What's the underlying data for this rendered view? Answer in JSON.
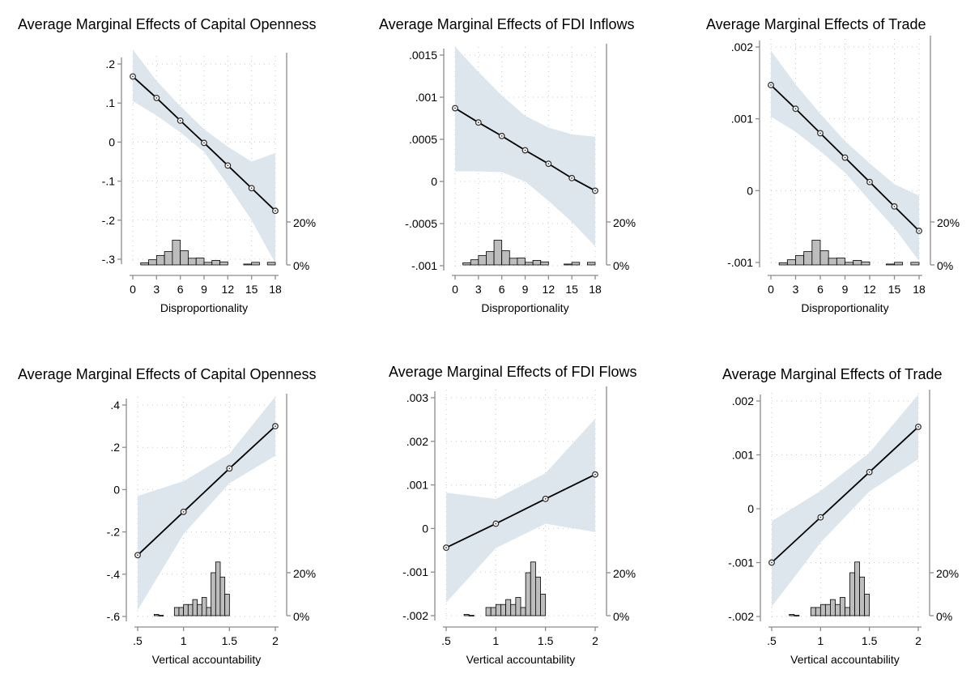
{
  "chart_data": [
    {
      "type": "line",
      "title": "Average Marginal Effects of Capital Openness",
      "xlabel": "Disproportionality",
      "xlim": [
        0,
        18
      ],
      "xticks": [
        0,
        3,
        6,
        9,
        12,
        15,
        18
      ],
      "xtick_labels": [
        "0",
        "3",
        "6",
        "9",
        "12",
        "15",
        "18"
      ],
      "ylim": [
        -0.3,
        0.2
      ],
      "yticks": [
        -0.3,
        -0.2,
        -0.1,
        0,
        0.1,
        0.2
      ],
      "ytick_labels": [
        "-.3",
        "-.2",
        "-.1",
        "0",
        ".1",
        ".2"
      ],
      "x": [
        0,
        3,
        6,
        9,
        12,
        15,
        18
      ],
      "y": [
        0.168,
        0.113,
        0.055,
        -0.002,
        -0.06,
        -0.118,
        -0.176
      ],
      "ci_lower": [
        0.105,
        0.068,
        0.025,
        -0.025,
        -0.11,
        -0.2,
        -0.31
      ],
      "ci_upper": [
        0.237,
        0.157,
        0.092,
        0.033,
        -0.012,
        -0.05,
        -0.028
      ],
      "histogram": {
        "bin_width": 1,
        "bin_starts": [
          1,
          2,
          3,
          4,
          5,
          6,
          7,
          8,
          9,
          10,
          11,
          14,
          15,
          17
        ],
        "shares": [
          0.01,
          0.024,
          0.044,
          0.062,
          0.115,
          0.066,
          0.031,
          0.032,
          0.012,
          0.021,
          0.014,
          0.004,
          0.012,
          0.012
        ]
      },
      "secondary_axis_labels": [
        "20%",
        "0%"
      ]
    },
    {
      "type": "line",
      "title": "Average Marginal Effects of FDI Inflows",
      "xlabel": "Disproportionality",
      "xlim": [
        0,
        18
      ],
      "xticks": [
        0,
        3,
        6,
        9,
        12,
        15,
        18
      ],
      "xtick_labels": [
        "0",
        "3",
        "6",
        "9",
        "12",
        "15",
        "18"
      ],
      "ylim": [
        -0.001,
        0.0015
      ],
      "yticks": [
        -0.001,
        -0.0005,
        0,
        0.0005,
        0.001,
        0.0015
      ],
      "ytick_labels": [
        "-.001",
        "-.0005",
        "0",
        ".0005",
        ".001",
        ".0015"
      ],
      "x": [
        0,
        3,
        6,
        9,
        12,
        15,
        18
      ],
      "y": [
        0.00087,
        0.0007,
        0.00054,
        0.00037,
        0.00021,
        4e-05,
        -0.00011
      ],
      "ci_lower": [
        0.00012,
        0.00012,
        0.00011,
        0.0,
        -0.00023,
        -0.00048,
        -0.00077
      ],
      "ci_upper": [
        0.0016,
        0.0013,
        0.00102,
        0.00078,
        0.00064,
        0.00056,
        0.00053
      ],
      "histogram": {
        "bin_width": 1,
        "bin_starts": [
          1,
          2,
          3,
          4,
          5,
          6,
          7,
          8,
          9,
          10,
          11,
          14,
          15,
          17
        ],
        "shares": [
          0.01,
          0.024,
          0.044,
          0.062,
          0.115,
          0.066,
          0.031,
          0.032,
          0.012,
          0.021,
          0.014,
          0.004,
          0.012,
          0.012
        ]
      },
      "secondary_axis_labels": [
        "20%",
        "0%"
      ]
    },
    {
      "type": "line",
      "title": "Average Marginal Effects of Trade",
      "xlabel": "Disproportionality",
      "xlim": [
        0,
        18
      ],
      "xticks": [
        0,
        3,
        6,
        9,
        12,
        15,
        18
      ],
      "xtick_labels": [
        "0",
        "3",
        "6",
        "9",
        "12",
        "15",
        "18"
      ],
      "ylim": [
        -0.001,
        0.002
      ],
      "yticks": [
        -0.001,
        0,
        0.001,
        0.002
      ],
      "ytick_labels": [
        "-.001",
        "0",
        ".001",
        ".002"
      ],
      "x": [
        0,
        3,
        6,
        9,
        12,
        15,
        18
      ],
      "y": [
        0.00147,
        0.00114,
        0.0008,
        0.00046,
        0.00012,
        -0.00022,
        -0.00056
      ],
      "ci_lower": [
        0.00103,
        0.00082,
        0.00055,
        0.00025,
        -0.00014,
        -0.00052,
        -0.00098
      ],
      "ci_upper": [
        0.00195,
        0.00148,
        0.00107,
        0.00069,
        0.00038,
        9e-05,
        -7e-05
      ],
      "histogram": {
        "bin_width": 1,
        "bin_starts": [
          1,
          2,
          3,
          4,
          5,
          6,
          7,
          8,
          9,
          10,
          11,
          14,
          15,
          17
        ],
        "shares": [
          0.01,
          0.024,
          0.044,
          0.062,
          0.115,
          0.066,
          0.031,
          0.032,
          0.012,
          0.021,
          0.014,
          0.004,
          0.012,
          0.012
        ]
      },
      "secondary_axis_labels": [
        "20%",
        "0%"
      ]
    },
    {
      "type": "line",
      "title": "Average Marginal Effects of Capital Openness",
      "xlabel": "Vertical accountability",
      "xlim": [
        0.5,
        2
      ],
      "xticks": [
        0.5,
        1,
        1.5,
        2
      ],
      "xtick_labels": [
        ".5",
        "1",
        "1.5",
        "2"
      ],
      "ylim": [
        -0.6,
        0.4
      ],
      "yticks": [
        -0.6,
        -0.4,
        -0.2,
        0,
        0.2,
        0.4
      ],
      "ytick_labels": [
        "-.6",
        "-.4",
        "-.2",
        "0",
        ".2",
        ".4"
      ],
      "x": [
        0.5,
        1,
        1.5,
        2
      ],
      "y": [
        -0.31,
        -0.105,
        0.1,
        0.3
      ],
      "ci_lower": [
        -0.57,
        -0.21,
        0.03,
        0.16
      ],
      "ci_upper": [
        -0.03,
        0.04,
        0.17,
        0.44
      ],
      "histogram": {
        "bin_width": 0.05,
        "bin_starts": [
          0.68,
          0.73,
          0.9,
          0.95,
          1.0,
          1.05,
          1.1,
          1.15,
          1.2,
          1.25,
          1.3,
          1.35,
          1.4,
          1.45,
          1.5,
          1.55
        ],
        "shares": [
          0.006,
          0.002,
          0.038,
          0.038,
          0.052,
          0.052,
          0.075,
          0.052,
          0.085,
          0.038,
          0.2,
          0.25,
          0.18,
          0.1,
          0,
          0
        ]
      },
      "secondary_axis_labels": [
        "20%",
        "0%"
      ]
    },
    {
      "type": "line",
      "title": "Average Marginal Effects of FDI Flows",
      "xlabel": "Vertical accountability",
      "xlim": [
        0.5,
        2
      ],
      "xticks": [
        0.5,
        1,
        1.5,
        2
      ],
      "xtick_labels": [
        ".5",
        "1",
        "1.5",
        "2"
      ],
      "ylim": [
        -0.002,
        0.003
      ],
      "yticks": [
        -0.002,
        -0.001,
        0,
        0.001,
        0.002,
        0.003
      ],
      "ytick_labels": [
        "-.002",
        "-.001",
        "0",
        ".001",
        ".002",
        ".003"
      ],
      "x": [
        0.5,
        1,
        1.5,
        2
      ],
      "y": [
        -0.00044,
        0.00011,
        0.00068,
        0.00124
      ],
      "ci_lower": [
        -0.0017,
        -0.00045,
        0.00011,
        -8e-05
      ],
      "ci_upper": [
        0.00082,
        0.00068,
        0.00127,
        0.00252
      ],
      "histogram": {
        "bin_width": 0.05,
        "bin_starts": [
          0.68,
          0.73,
          0.9,
          0.95,
          1.0,
          1.05,
          1.1,
          1.15,
          1.2,
          1.25,
          1.3,
          1.35,
          1.4,
          1.45,
          1.5,
          1.55
        ],
        "shares": [
          0.006,
          0.002,
          0.038,
          0.038,
          0.052,
          0.052,
          0.075,
          0.052,
          0.085,
          0.038,
          0.2,
          0.25,
          0.18,
          0.1,
          0,
          0
        ]
      },
      "secondary_axis_labels": [
        "20%",
        "0%"
      ]
    },
    {
      "type": "line",
      "title": "Average Marginal Effects of Trade",
      "xlabel": "Vertical accountability",
      "xlim": [
        0.5,
        2
      ],
      "xticks": [
        0.5,
        1,
        1.5,
        2
      ],
      "xtick_labels": [
        ".5",
        "1",
        "1.5",
        "2"
      ],
      "ylim": [
        -0.002,
        0.002
      ],
      "yticks": [
        -0.002,
        -0.001,
        0,
        0.001,
        0.002
      ],
      "ytick_labels": [
        "-.002",
        "-.001",
        "0",
        ".001",
        ".002"
      ],
      "x": [
        0.5,
        1,
        1.5,
        2
      ],
      "y": [
        -0.001,
        -0.00016,
        0.00068,
        0.00152
      ],
      "ci_lower": [
        -0.00182,
        -0.00063,
        0.00032,
        0.00092
      ],
      "ci_upper": [
        -0.00023,
        0.00033,
        0.00104,
        0.00212
      ],
      "histogram": {
        "bin_width": 0.05,
        "bin_starts": [
          0.68,
          0.73,
          0.9,
          0.95,
          1.0,
          1.05,
          1.1,
          1.15,
          1.2,
          1.25,
          1.3,
          1.35,
          1.4,
          1.45,
          1.5,
          1.55
        ],
        "shares": [
          0.006,
          0.002,
          0.038,
          0.038,
          0.052,
          0.052,
          0.075,
          0.052,
          0.085,
          0.038,
          0.2,
          0.25,
          0.18,
          0.1,
          0,
          0
        ]
      },
      "secondary_axis_labels": [
        "20%",
        "0%"
      ]
    }
  ],
  "colors": {
    "ci_band": "#dde6ec",
    "line": "#000000",
    "histogram_fill": "#bdbdbd",
    "histogram_stroke": "#000000",
    "axis": "#8c8c8c",
    "grid": "#c8c8c8"
  }
}
